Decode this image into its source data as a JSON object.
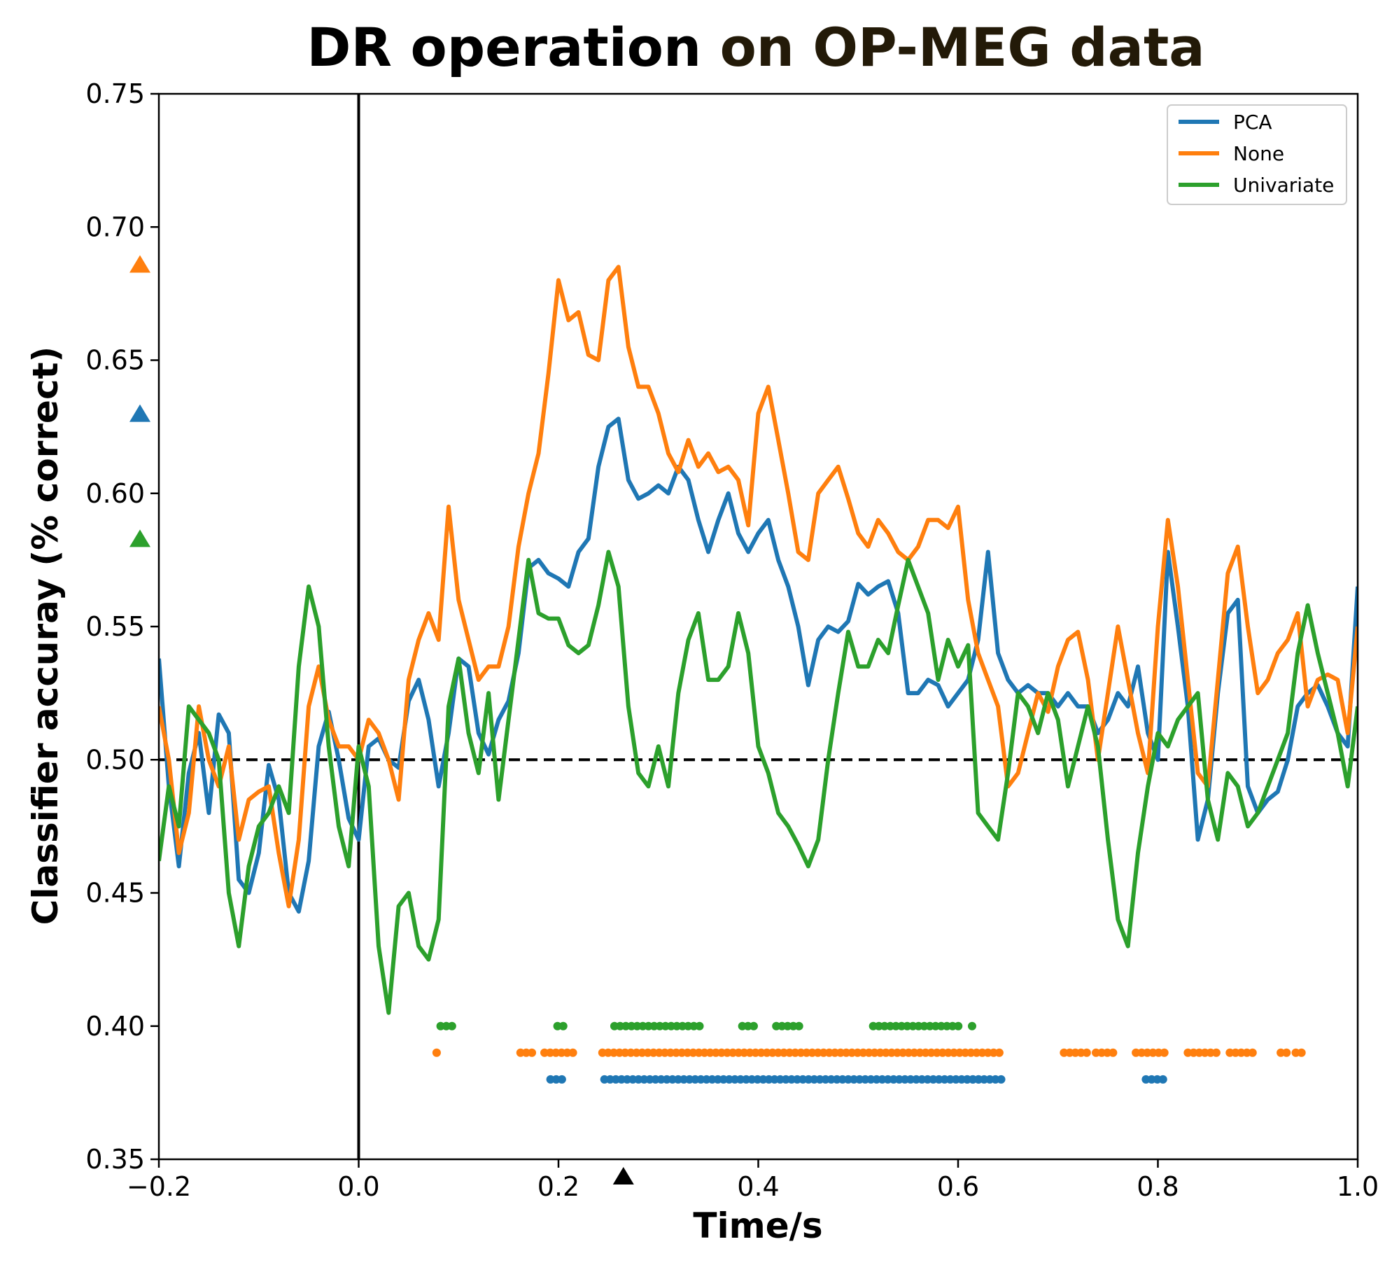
{
  "chart_data": {
    "type": "line",
    "title_part1": "DR operation ",
    "title_part2": "on OP-MEG data",
    "title_colors": [
      "#000000",
      "#231a08"
    ],
    "xlabel": "Time/s",
    "ylabel": "Classifier accuray (% correct)",
    "xlim": [
      -0.2,
      1.0
    ],
    "ylim": [
      0.35,
      0.75
    ],
    "xticks": [
      -0.2,
      0.0,
      0.2,
      0.4,
      0.6,
      0.8,
      1.0
    ],
    "xtick_labels": [
      "−0.2",
      "0.0",
      "0.2",
      "0.4",
      "0.6",
      "0.8",
      "1.0"
    ],
    "yticks": [
      0.35,
      0.4,
      0.45,
      0.5,
      0.55,
      0.6,
      0.65,
      0.7,
      0.75
    ],
    "ytick_labels": [
      "0.35",
      "0.40",
      "0.45",
      "0.50",
      "0.55",
      "0.60",
      "0.65",
      "0.70",
      "0.75"
    ],
    "chance_level": 0.5,
    "stimulus_onset": 0.0,
    "legend_position": "top-right",
    "peak_marker_time": 0.265,
    "series": [
      {
        "name": "PCA",
        "color": "#1f77b4",
        "peak_value": 0.63,
        "x": [
          -0.2,
          -0.19,
          -0.18,
          -0.17,
          -0.16,
          -0.15,
          -0.14,
          -0.13,
          -0.12,
          -0.11,
          -0.1,
          -0.09,
          -0.08,
          -0.07,
          -0.06,
          -0.05,
          -0.04,
          -0.03,
          -0.02,
          -0.01,
          0.0,
          0.01,
          0.02,
          0.03,
          0.04,
          0.05,
          0.06,
          0.07,
          0.08,
          0.09,
          0.1,
          0.11,
          0.12,
          0.13,
          0.14,
          0.15,
          0.16,
          0.17,
          0.18,
          0.19,
          0.2,
          0.21,
          0.22,
          0.23,
          0.24,
          0.25,
          0.26,
          0.27,
          0.28,
          0.29,
          0.3,
          0.31,
          0.32,
          0.33,
          0.34,
          0.35,
          0.36,
          0.37,
          0.38,
          0.39,
          0.4,
          0.41,
          0.42,
          0.43,
          0.44,
          0.45,
          0.46,
          0.47,
          0.48,
          0.49,
          0.5,
          0.51,
          0.52,
          0.53,
          0.54,
          0.55,
          0.56,
          0.57,
          0.58,
          0.59,
          0.6,
          0.61,
          0.62,
          0.63,
          0.64,
          0.65,
          0.66,
          0.67,
          0.68,
          0.69,
          0.7,
          0.71,
          0.72,
          0.73,
          0.74,
          0.75,
          0.76,
          0.77,
          0.78,
          0.79,
          0.8,
          0.81,
          0.82,
          0.83,
          0.84,
          0.85,
          0.86,
          0.87,
          0.88,
          0.89,
          0.9,
          0.91,
          0.92,
          0.93,
          0.94,
          0.95,
          0.96,
          0.97,
          0.98,
          0.99,
          1.0
        ],
        "values": [
          0.538,
          0.49,
          0.46,
          0.495,
          0.51,
          0.48,
          0.517,
          0.51,
          0.455,
          0.45,
          0.465,
          0.498,
          0.485,
          0.45,
          0.443,
          0.462,
          0.505,
          0.518,
          0.5,
          0.478,
          0.47,
          0.505,
          0.508,
          0.5,
          0.497,
          0.522,
          0.53,
          0.515,
          0.49,
          0.51,
          0.538,
          0.535,
          0.51,
          0.502,
          0.515,
          0.522,
          0.54,
          0.572,
          0.575,
          0.57,
          0.568,
          0.565,
          0.578,
          0.583,
          0.61,
          0.625,
          0.628,
          0.605,
          0.598,
          0.6,
          0.603,
          0.6,
          0.61,
          0.605,
          0.59,
          0.578,
          0.59,
          0.6,
          0.585,
          0.578,
          0.585,
          0.59,
          0.575,
          0.565,
          0.55,
          0.528,
          0.545,
          0.55,
          0.548,
          0.552,
          0.566,
          0.562,
          0.565,
          0.567,
          0.555,
          0.525,
          0.525,
          0.53,
          0.528,
          0.52,
          0.525,
          0.53,
          0.545,
          0.578,
          0.54,
          0.53,
          0.525,
          0.528,
          0.525,
          0.525,
          0.52,
          0.525,
          0.52,
          0.52,
          0.51,
          0.515,
          0.525,
          0.52,
          0.535,
          0.51,
          0.5,
          0.578,
          0.55,
          0.52,
          0.47,
          0.485,
          0.525,
          0.555,
          0.56,
          0.49,
          0.48,
          0.485,
          0.488,
          0.5,
          0.52,
          0.525,
          0.528,
          0.52,
          0.51,
          0.505,
          0.565
        ]
      },
      {
        "name": "None",
        "color": "#ff7f0e",
        "peak_value": 0.686,
        "x": [
          -0.2,
          -0.19,
          -0.18,
          -0.17,
          -0.16,
          -0.15,
          -0.14,
          -0.13,
          -0.12,
          -0.11,
          -0.1,
          -0.09,
          -0.08,
          -0.07,
          -0.06,
          -0.05,
          -0.04,
          -0.03,
          -0.02,
          -0.01,
          0.0,
          0.01,
          0.02,
          0.03,
          0.04,
          0.05,
          0.06,
          0.07,
          0.08,
          0.09,
          0.1,
          0.11,
          0.12,
          0.13,
          0.14,
          0.15,
          0.16,
          0.17,
          0.18,
          0.19,
          0.2,
          0.21,
          0.22,
          0.23,
          0.24,
          0.25,
          0.26,
          0.27,
          0.28,
          0.29,
          0.3,
          0.31,
          0.32,
          0.33,
          0.34,
          0.35,
          0.36,
          0.37,
          0.38,
          0.39,
          0.4,
          0.41,
          0.42,
          0.43,
          0.44,
          0.45,
          0.46,
          0.47,
          0.48,
          0.49,
          0.5,
          0.51,
          0.52,
          0.53,
          0.54,
          0.55,
          0.56,
          0.57,
          0.58,
          0.59,
          0.6,
          0.61,
          0.62,
          0.63,
          0.64,
          0.65,
          0.66,
          0.67,
          0.68,
          0.69,
          0.7,
          0.71,
          0.72,
          0.73,
          0.74,
          0.75,
          0.76,
          0.77,
          0.78,
          0.79,
          0.8,
          0.81,
          0.82,
          0.83,
          0.84,
          0.85,
          0.86,
          0.87,
          0.88,
          0.89,
          0.9,
          0.91,
          0.92,
          0.93,
          0.94,
          0.95,
          0.96,
          0.97,
          0.98,
          0.99,
          1.0
        ],
        "values": [
          0.52,
          0.5,
          0.465,
          0.48,
          0.52,
          0.5,
          0.49,
          0.505,
          0.47,
          0.485,
          0.488,
          0.49,
          0.465,
          0.445,
          0.47,
          0.52,
          0.535,
          0.515,
          0.505,
          0.505,
          0.5,
          0.515,
          0.51,
          0.5,
          0.485,
          0.53,
          0.545,
          0.555,
          0.545,
          0.595,
          0.56,
          0.545,
          0.53,
          0.535,
          0.535,
          0.55,
          0.58,
          0.6,
          0.615,
          0.645,
          0.68,
          0.665,
          0.668,
          0.652,
          0.65,
          0.68,
          0.685,
          0.655,
          0.64,
          0.64,
          0.63,
          0.615,
          0.608,
          0.62,
          0.61,
          0.615,
          0.608,
          0.61,
          0.605,
          0.588,
          0.63,
          0.64,
          0.62,
          0.6,
          0.578,
          0.575,
          0.6,
          0.605,
          0.61,
          0.598,
          0.585,
          0.58,
          0.59,
          0.585,
          0.578,
          0.575,
          0.58,
          0.59,
          0.59,
          0.587,
          0.595,
          0.56,
          0.54,
          0.53,
          0.52,
          0.49,
          0.495,
          0.51,
          0.525,
          0.518,
          0.535,
          0.545,
          0.548,
          0.53,
          0.5,
          0.525,
          0.55,
          0.53,
          0.51,
          0.495,
          0.55,
          0.59,
          0.565,
          0.53,
          0.495,
          0.49,
          0.53,
          0.57,
          0.58,
          0.55,
          0.525,
          0.53,
          0.54,
          0.545,
          0.555,
          0.52,
          0.53,
          0.532,
          0.53,
          0.51,
          0.55
        ]
      },
      {
        "name": "Univariate",
        "color": "#2ca02c",
        "peak_value": 0.583,
        "x": [
          -0.2,
          -0.19,
          -0.18,
          -0.17,
          -0.16,
          -0.15,
          -0.14,
          -0.13,
          -0.12,
          -0.11,
          -0.1,
          -0.09,
          -0.08,
          -0.07,
          -0.06,
          -0.05,
          -0.04,
          -0.03,
          -0.02,
          -0.01,
          0.0,
          0.01,
          0.02,
          0.03,
          0.04,
          0.05,
          0.06,
          0.07,
          0.08,
          0.09,
          0.1,
          0.11,
          0.12,
          0.13,
          0.14,
          0.15,
          0.16,
          0.17,
          0.18,
          0.19,
          0.2,
          0.21,
          0.22,
          0.23,
          0.24,
          0.25,
          0.26,
          0.27,
          0.28,
          0.29,
          0.3,
          0.31,
          0.32,
          0.33,
          0.34,
          0.35,
          0.36,
          0.37,
          0.38,
          0.39,
          0.4,
          0.41,
          0.42,
          0.43,
          0.44,
          0.45,
          0.46,
          0.47,
          0.48,
          0.49,
          0.5,
          0.51,
          0.52,
          0.53,
          0.54,
          0.55,
          0.56,
          0.57,
          0.58,
          0.59,
          0.6,
          0.61,
          0.62,
          0.63,
          0.64,
          0.65,
          0.66,
          0.67,
          0.68,
          0.69,
          0.7,
          0.71,
          0.72,
          0.73,
          0.74,
          0.75,
          0.76,
          0.77,
          0.78,
          0.79,
          0.8,
          0.81,
          0.82,
          0.83,
          0.84,
          0.85,
          0.86,
          0.87,
          0.88,
          0.89,
          0.9,
          0.91,
          0.92,
          0.93,
          0.94,
          0.95,
          0.96,
          0.97,
          0.98,
          0.99,
          1.0
        ],
        "values": [
          0.462,
          0.49,
          0.475,
          0.52,
          0.515,
          0.51,
          0.5,
          0.45,
          0.43,
          0.46,
          0.475,
          0.48,
          0.49,
          0.48,
          0.535,
          0.565,
          0.55,
          0.505,
          0.475,
          0.46,
          0.505,
          0.49,
          0.43,
          0.405,
          0.445,
          0.45,
          0.43,
          0.425,
          0.44,
          0.52,
          0.538,
          0.51,
          0.495,
          0.525,
          0.485,
          0.515,
          0.545,
          0.575,
          0.555,
          0.553,
          0.553,
          0.543,
          0.54,
          0.543,
          0.558,
          0.578,
          0.565,
          0.52,
          0.495,
          0.49,
          0.505,
          0.49,
          0.525,
          0.545,
          0.555,
          0.53,
          0.53,
          0.535,
          0.555,
          0.54,
          0.505,
          0.495,
          0.48,
          0.475,
          0.468,
          0.46,
          0.47,
          0.5,
          0.525,
          0.548,
          0.535,
          0.535,
          0.545,
          0.54,
          0.558,
          0.575,
          0.565,
          0.555,
          0.53,
          0.545,
          0.535,
          0.543,
          0.48,
          0.475,
          0.47,
          0.495,
          0.525,
          0.52,
          0.51,
          0.525,
          0.515,
          0.49,
          0.505,
          0.52,
          0.505,
          0.47,
          0.44,
          0.43,
          0.465,
          0.49,
          0.51,
          0.505,
          0.515,
          0.52,
          0.525,
          0.485,
          0.47,
          0.495,
          0.49,
          0.475,
          0.48,
          0.49,
          0.5,
          0.51,
          0.54,
          0.558,
          0.54,
          0.525,
          0.51,
          0.49,
          0.52
        ]
      }
    ],
    "significance_segments": [
      {
        "series": "Univariate",
        "y": 0.4,
        "segments": [
          [
            0.082,
            0.094
          ],
          [
            0.199,
            0.208
          ],
          [
            0.256,
            0.342
          ],
          [
            0.384,
            0.398
          ],
          [
            0.418,
            0.445
          ],
          [
            0.515,
            0.603
          ],
          [
            0.614,
            0.614
          ]
        ]
      },
      {
        "series": "None",
        "y": 0.39,
        "segments": [
          [
            0.078,
            0.083
          ],
          [
            0.162,
            0.178
          ],
          [
            0.186,
            0.216
          ],
          [
            0.244,
            0.645
          ],
          [
            0.706,
            0.73
          ],
          [
            0.738,
            0.758
          ],
          [
            0.778,
            0.81
          ],
          [
            0.83,
            0.864
          ],
          [
            0.872,
            0.898
          ],
          [
            0.923,
            0.929
          ],
          [
            0.938,
            0.948
          ]
        ]
      },
      {
        "series": "PCA",
        "y": 0.38,
        "segments": [
          [
            0.192,
            0.207
          ],
          [
            0.246,
            0.626
          ],
          [
            0.609,
            0.645
          ],
          [
            0.788,
            0.807
          ]
        ]
      }
    ]
  }
}
